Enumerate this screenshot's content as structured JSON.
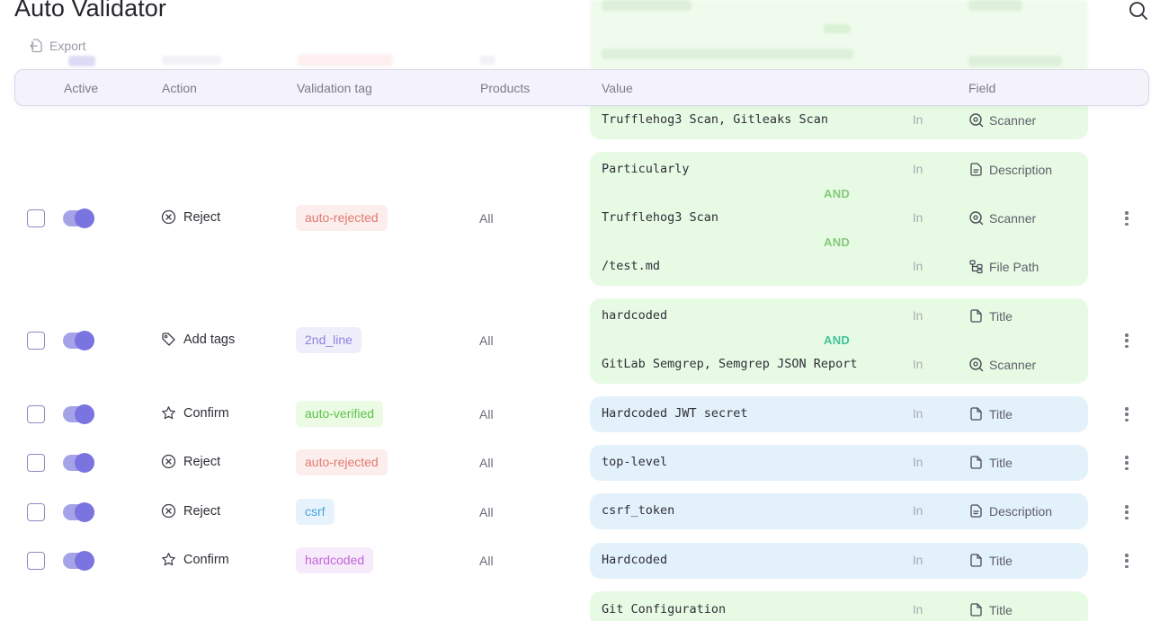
{
  "page": {
    "title": "Auto Validator",
    "export_label": "Export"
  },
  "table": {
    "headers": {
      "active": "Active",
      "action": "Action",
      "validation_tag": "Validation tag",
      "products": "Products",
      "value": "Value",
      "field": "Field"
    },
    "and_label": "AND",
    "partial_top": {
      "value": "Trufflehog3 Scan, Gitleaks Scan",
      "operator": "In",
      "field": "Scanner"
    },
    "rows": [
      {
        "action": "Reject",
        "tag": "auto-rejected",
        "products": "All",
        "conditions": [
          {
            "value": "Particularly",
            "operator": "In",
            "field": "Description"
          },
          {
            "value": "Trufflehog3 Scan",
            "operator": "In",
            "field": "Scanner"
          },
          {
            "value": "/test.md",
            "operator": "In",
            "field": "File Path"
          }
        ]
      },
      {
        "action": "Add tags",
        "tag": "2nd_line",
        "products": "All",
        "conditions": [
          {
            "value": "hardcoded",
            "operator": "In",
            "field": "Title"
          },
          {
            "value": "GitLab Semgrep, Semgrep JSON Report",
            "operator": "In",
            "field": "Scanner"
          }
        ]
      },
      {
        "action": "Confirm",
        "tag": "auto-verified",
        "products": "All",
        "conditions": [
          {
            "value": "Hardcoded JWT secret",
            "operator": "In",
            "field": "Title"
          }
        ]
      },
      {
        "action": "Reject",
        "tag": "auto-rejected",
        "products": "All",
        "conditions": [
          {
            "value": "top-level",
            "operator": "In",
            "field": "Title"
          }
        ]
      },
      {
        "action": "Reject",
        "tag": "csrf",
        "products": "All",
        "conditions": [
          {
            "value": "csrf_token",
            "operator": "In",
            "field": "Description"
          }
        ]
      },
      {
        "action": "Confirm",
        "tag": "hardcoded",
        "products": "All",
        "conditions": [
          {
            "value": "Hardcoded",
            "operator": "In",
            "field": "Title"
          }
        ]
      }
    ],
    "partial_bottom": {
      "value": "Git Configuration",
      "operator": "In",
      "field": "Title"
    }
  },
  "colors": {
    "accent": "#7a74e0",
    "value_bg_green": "#e7fbe4",
    "value_bg_blue": "#e3f1fb",
    "and_green": "#84c97a",
    "and_teal": "#43c29a"
  }
}
